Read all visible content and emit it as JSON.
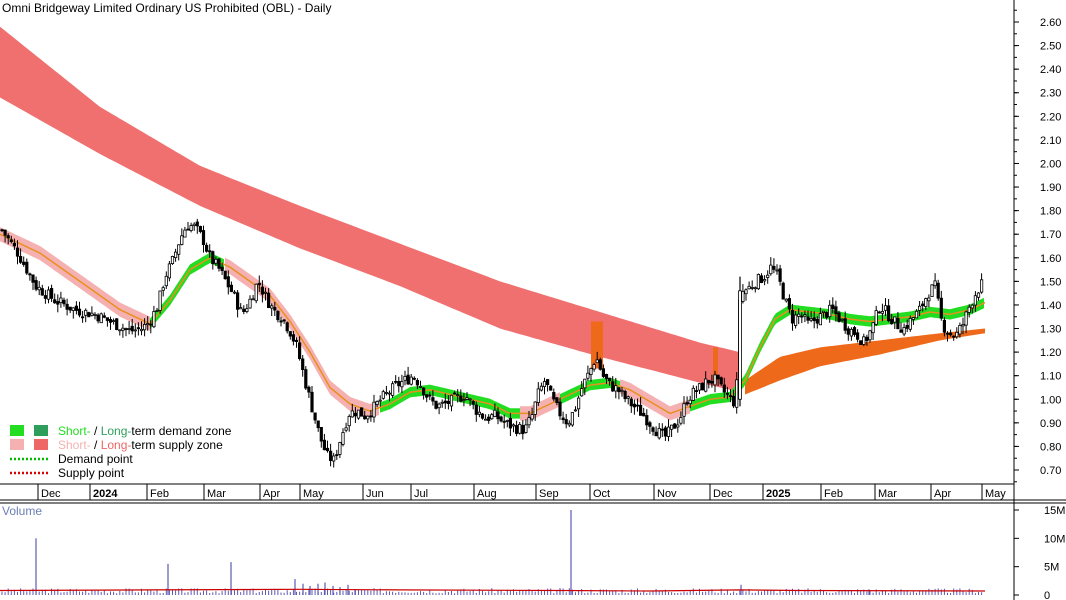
{
  "chart_data": [
    {
      "type": "candlestick",
      "title": "Omni Bridgeway Limited Ordinary US Prohibited (OBL) - Daily",
      "y_ticks": [
        "0.70",
        "0.80",
        "0.90",
        "1.00",
        "1.10",
        "1.20",
        "1.30",
        "1.40",
        "1.50",
        "1.60",
        "1.70",
        "1.80",
        "1.90",
        "2.00",
        "2.10",
        "2.20",
        "2.30",
        "2.40",
        "2.50",
        "2.60"
      ],
      "ylim": [
        0.63,
        2.65
      ],
      "x_ticks": [
        "Dec",
        "2024",
        "Feb",
        "Mar",
        "Apr",
        "May",
        "Jun",
        "Jul",
        "Aug",
        "Sep",
        "Oct",
        "Nov",
        "Dec",
        "2025",
        "Feb",
        "Mar",
        "Apr",
        "May"
      ],
      "legend": [
        {
          "label_a": "Short-",
          "label_sep": " / ",
          "label_b": "Long-",
          "label_c": "term demand zone",
          "color_a": "#22dd22",
          "color_b": "#2e9e5b"
        },
        {
          "label_a": "Short-",
          "label_sep": " / ",
          "label_b": "Long-",
          "label_c": "term supply zone",
          "color_a": "#f5b1b1",
          "color_b": "#ef6666"
        },
        {
          "label": "Demand point",
          "color": "#00bb00"
        },
        {
          "label": "Supply point",
          "color": "#dd0000"
        }
      ],
      "close_path": [
        [
          0,
          1.73
        ],
        [
          18,
          1.62
        ],
        [
          36,
          1.48
        ],
        [
          55,
          1.42
        ],
        [
          75,
          1.38
        ],
        [
          95,
          1.36
        ],
        [
          115,
          1.32
        ],
        [
          130,
          1.29
        ],
        [
          142,
          1.3
        ],
        [
          150,
          1.33
        ],
        [
          158,
          1.4
        ],
        [
          165,
          1.52
        ],
        [
          172,
          1.58
        ],
        [
          180,
          1.68
        ],
        [
          187,
          1.74
        ],
        [
          195,
          1.73
        ],
        [
          203,
          1.68
        ],
        [
          210,
          1.6
        ],
        [
          218,
          1.56
        ],
        [
          226,
          1.5
        ],
        [
          234,
          1.44
        ],
        [
          242,
          1.36
        ],
        [
          250,
          1.42
        ],
        [
          258,
          1.5
        ],
        [
          265,
          1.44
        ],
        [
          273,
          1.38
        ],
        [
          281,
          1.35
        ],
        [
          289,
          1.3
        ],
        [
          297,
          1.22
        ],
        [
          305,
          1.08
        ],
        [
          313,
          0.95
        ],
        [
          320,
          0.84
        ],
        [
          327,
          0.76
        ],
        [
          334,
          0.74
        ],
        [
          341,
          0.84
        ],
        [
          349,
          0.94
        ],
        [
          357,
          0.95
        ],
        [
          365,
          0.93
        ],
        [
          373,
          0.96
        ],
        [
          381,
          1.0
        ],
        [
          389,
          1.03
        ],
        [
          397,
          1.06
        ],
        [
          405,
          1.08
        ],
        [
          413,
          1.1
        ],
        [
          421,
          1.06
        ],
        [
          429,
          1.0
        ],
        [
          437,
          0.97
        ],
        [
          445,
          0.98
        ],
        [
          455,
          1.0
        ],
        [
          465,
          1.02
        ],
        [
          475,
          0.96
        ],
        [
          485,
          0.92
        ],
        [
          495,
          0.93
        ],
        [
          505,
          0.9
        ],
        [
          515,
          0.88
        ],
        [
          525,
          0.87
        ],
        [
          532,
          0.93
        ],
        [
          538,
          1.02
        ],
        [
          545,
          1.08
        ],
        [
          552,
          1.0
        ],
        [
          560,
          0.94
        ],
        [
          568,
          0.9
        ],
        [
          575,
          0.96
        ],
        [
          582,
          1.05
        ],
        [
          590,
          1.12
        ],
        [
          596,
          1.18
        ],
        [
          603,
          1.1
        ],
        [
          610,
          1.06
        ],
        [
          618,
          1.04
        ],
        [
          626,
          1.0
        ],
        [
          634,
          0.97
        ],
        [
          642,
          0.94
        ],
        [
          650,
          0.9
        ],
        [
          658,
          0.86
        ],
        [
          665,
          0.84
        ],
        [
          673,
          0.88
        ],
        [
          680,
          0.92
        ],
        [
          687,
          1.0
        ],
        [
          694,
          1.03
        ],
        [
          701,
          1.05
        ],
        [
          708,
          1.08
        ],
        [
          715,
          1.08
        ],
        [
          722,
          1.04
        ],
        [
          729,
          1.01
        ],
        [
          736,
          0.98
        ],
        [
          740,
          1.45
        ],
        [
          748,
          1.47
        ],
        [
          756,
          1.5
        ],
        [
          764,
          1.52
        ],
        [
          771,
          1.56
        ],
        [
          778,
          1.52
        ],
        [
          785,
          1.42
        ],
        [
          792,
          1.34
        ],
        [
          800,
          1.36
        ],
        [
          808,
          1.32
        ],
        [
          816,
          1.34
        ],
        [
          824,
          1.36
        ],
        [
          832,
          1.38
        ],
        [
          840,
          1.34
        ],
        [
          848,
          1.3
        ],
        [
          856,
          1.28
        ],
        [
          864,
          1.24
        ],
        [
          872,
          1.3
        ],
        [
          880,
          1.4
        ],
        [
          888,
          1.36
        ],
        [
          896,
          1.32
        ],
        [
          904,
          1.3
        ],
        [
          912,
          1.34
        ],
        [
          920,
          1.38
        ],
        [
          928,
          1.45
        ],
        [
          935,
          1.48
        ],
        [
          942,
          1.32
        ],
        [
          949,
          1.28
        ],
        [
          956,
          1.27
        ],
        [
          963,
          1.32
        ],
        [
          970,
          1.4
        ],
        [
          977,
          1.46
        ],
        [
          984,
          1.5
        ]
      ],
      "long_term_supply_upper": [
        [
          0,
          2.58
        ],
        [
          100,
          2.24
        ],
        [
          200,
          1.99
        ],
        [
          300,
          1.82
        ],
        [
          400,
          1.66
        ],
        [
          500,
          1.5
        ],
        [
          600,
          1.37
        ],
        [
          700,
          1.24
        ],
        [
          740,
          1.2
        ]
      ],
      "long_term_supply_lower": [
        [
          0,
          2.28
        ],
        [
          100,
          2.04
        ],
        [
          200,
          1.82
        ],
        [
          300,
          1.64
        ],
        [
          400,
          1.48
        ],
        [
          500,
          1.3
        ],
        [
          600,
          1.18
        ],
        [
          700,
          1.07
        ],
        [
          740,
          1.03
        ]
      ],
      "long_term_demand_upper": [
        [
          745,
          1.08
        ],
        [
          780,
          1.18
        ],
        [
          820,
          1.22
        ],
        [
          880,
          1.25
        ],
        [
          940,
          1.28
        ],
        [
          985,
          1.3
        ]
      ],
      "long_term_demand_lower": [
        [
          745,
          1.02
        ],
        [
          780,
          1.08
        ],
        [
          820,
          1.14
        ],
        [
          880,
          1.19
        ],
        [
          940,
          1.25
        ],
        [
          985,
          1.28
        ]
      ],
      "ma_short_path": [
        [
          0,
          1.7
        ],
        [
          40,
          1.62
        ],
        [
          80,
          1.5
        ],
        [
          120,
          1.38
        ],
        [
          150,
          1.32
        ],
        [
          170,
          1.42
        ],
        [
          190,
          1.55
        ],
        [
          210,
          1.6
        ],
        [
          230,
          1.56
        ],
        [
          250,
          1.5
        ],
        [
          270,
          1.44
        ],
        [
          290,
          1.33
        ],
        [
          310,
          1.2
        ],
        [
          330,
          1.05
        ],
        [
          350,
          0.98
        ],
        [
          370,
          0.95
        ],
        [
          390,
          0.98
        ],
        [
          410,
          1.03
        ],
        [
          430,
          1.04
        ],
        [
          450,
          1.02
        ],
        [
          470,
          1.0
        ],
        [
          490,
          0.98
        ],
        [
          510,
          0.94
        ],
        [
          530,
          0.94
        ],
        [
          550,
          0.98
        ],
        [
          570,
          1.02
        ],
        [
          590,
          1.06
        ],
        [
          610,
          1.07
        ],
        [
          630,
          1.04
        ],
        [
          650,
          0.99
        ],
        [
          670,
          0.94
        ],
        [
          690,
          0.97
        ],
        [
          710,
          1.0
        ],
        [
          730,
          1.01
        ],
        [
          745,
          1.08
        ],
        [
          760,
          1.22
        ],
        [
          775,
          1.34
        ],
        [
          790,
          1.38
        ],
        [
          810,
          1.37
        ],
        [
          830,
          1.36
        ],
        [
          850,
          1.34
        ],
        [
          870,
          1.33
        ],
        [
          890,
          1.34
        ],
        [
          910,
          1.35
        ],
        [
          930,
          1.37
        ],
        [
          950,
          1.36
        ],
        [
          970,
          1.38
        ],
        [
          985,
          1.41
        ]
      ],
      "short_supply_segments": [
        [
          0,
          150
        ],
        [
          225,
          380
        ],
        [
          520,
          560
        ],
        [
          620,
          690
        ]
      ],
      "short_demand_segments": [
        [
          150,
          225
        ],
        [
          380,
          520
        ],
        [
          560,
          620
        ],
        [
          690,
          985
        ]
      ],
      "supply_point_range": [
        591,
        603
      ],
      "supply_point_range_2": [
        713,
        718
      ]
    },
    {
      "type": "bar",
      "title": "Volume",
      "y_ticks": [
        "0",
        "5M",
        "10M",
        "15M"
      ],
      "ylim": [
        0,
        15
      ],
      "spikes": [
        [
          36,
          10
        ],
        [
          168,
          5.5
        ],
        [
          231,
          5.8
        ],
        [
          295,
          2.8
        ],
        [
          303,
          2.0
        ],
        [
          310,
          1.6
        ],
        [
          318,
          2.0
        ],
        [
          325,
          2.2
        ],
        [
          333,
          1.6
        ],
        [
          340,
          1.4
        ],
        [
          348,
          1.8
        ],
        [
          355,
          1.0
        ],
        [
          560,
          1.2
        ],
        [
          571,
          15
        ],
        [
          741,
          1.8
        ],
        [
          869,
          1.0
        ]
      ],
      "moving_avg": [
        [
          0,
          0.8
        ],
        [
          150,
          0.9
        ],
        [
          300,
          1.0
        ],
        [
          400,
          0.9
        ],
        [
          560,
          0.8
        ],
        [
          650,
          0.7
        ],
        [
          740,
          0.9
        ],
        [
          800,
          0.8
        ],
        [
          985,
          0.7
        ]
      ]
    }
  ]
}
